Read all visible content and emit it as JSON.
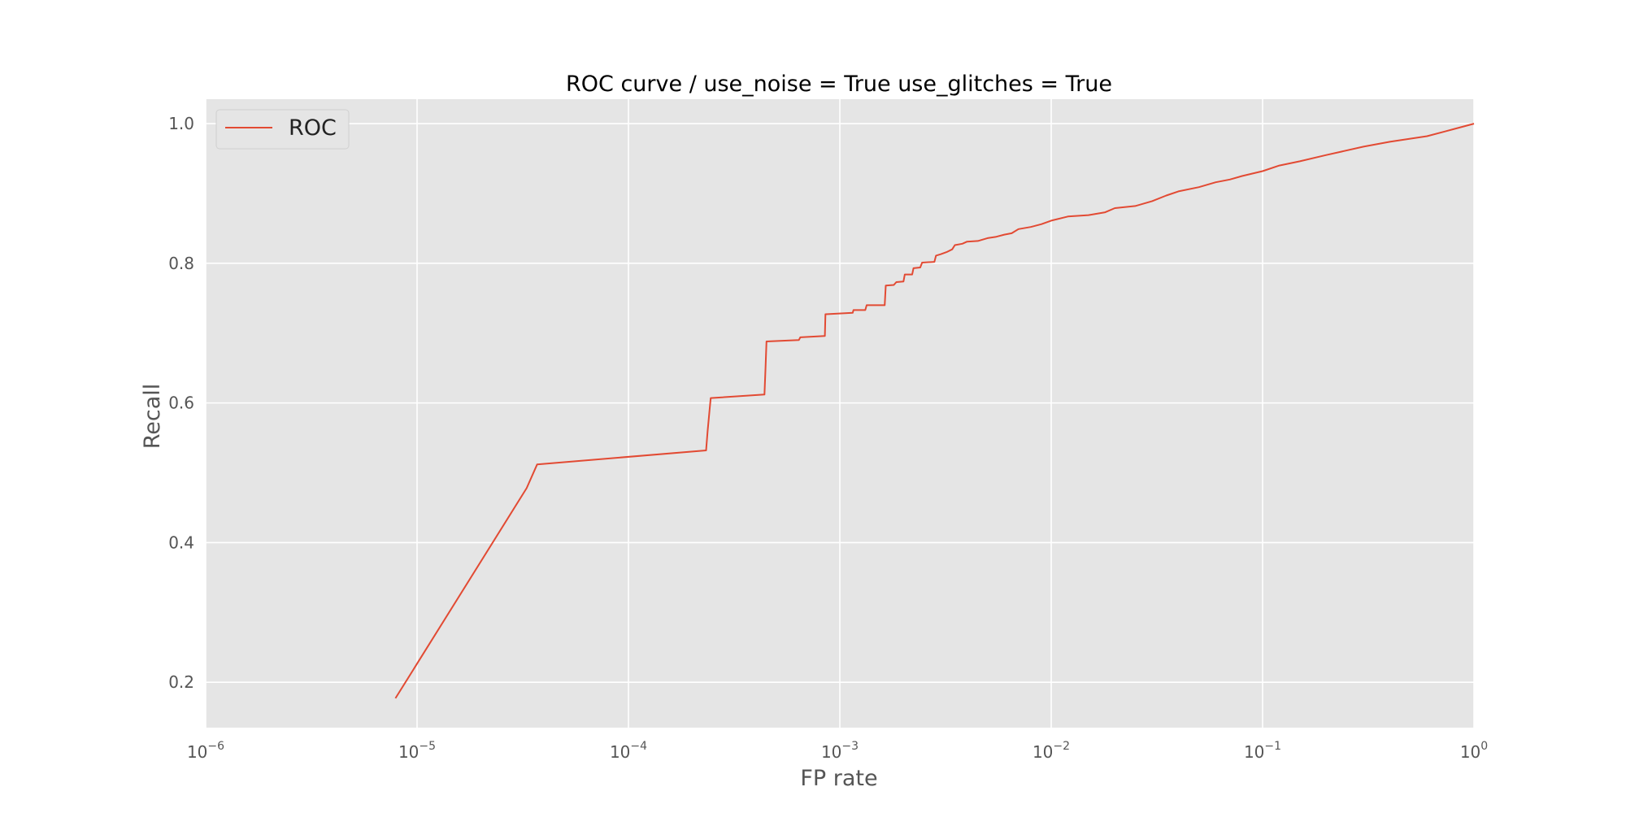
{
  "chart_data": {
    "type": "line",
    "title": "ROC curve / use_noise = True  use_glitches = True",
    "xlabel": "FP rate",
    "ylabel": "Recall",
    "xscale": "log",
    "xlim": [
      1e-06,
      1
    ],
    "ylim": [
      0.135,
      1.035
    ],
    "grid": true,
    "legend_placement": "upper-left",
    "x_ticks": [
      {
        "value": 1e-06,
        "base": "10",
        "exp": "−6"
      },
      {
        "value": 1e-05,
        "base": "10",
        "exp": "−5"
      },
      {
        "value": 0.0001,
        "base": "10",
        "exp": "−4"
      },
      {
        "value": 0.001,
        "base": "10",
        "exp": "−3"
      },
      {
        "value": 0.01,
        "base": "10",
        "exp": "−2"
      },
      {
        "value": 0.1,
        "base": "10",
        "exp": "−1"
      },
      {
        "value": 1,
        "base": "10",
        "exp": "0"
      }
    ],
    "y_ticks": [
      {
        "value": 0.2,
        "label": "0.2"
      },
      {
        "value": 0.4,
        "label": "0.4"
      },
      {
        "value": 0.6,
        "label": "0.6"
      },
      {
        "value": 0.8,
        "label": "0.8"
      },
      {
        "value": 1.0,
        "label": "1.0"
      }
    ],
    "series": [
      {
        "name": "ROC",
        "color": "#e24a33",
        "points": [
          [
            7.9e-06,
            0.177
          ],
          [
            3.3e-05,
            0.478
          ],
          [
            3.7e-05,
            0.512
          ],
          [
            0.000233,
            0.532
          ],
          [
            0.000237,
            0.56
          ],
          [
            0.000242,
            0.59
          ],
          [
            0.000245,
            0.607
          ],
          [
            0.00044,
            0.612
          ],
          [
            0.000445,
            0.65
          ],
          [
            0.00045,
            0.688
          ],
          [
            0.00064,
            0.69
          ],
          [
            0.00065,
            0.694
          ],
          [
            0.00085,
            0.696
          ],
          [
            0.000855,
            0.727
          ],
          [
            0.00115,
            0.729
          ],
          [
            0.00116,
            0.733
          ],
          [
            0.00132,
            0.733
          ],
          [
            0.00134,
            0.74
          ],
          [
            0.00163,
            0.74
          ],
          [
            0.00165,
            0.768
          ],
          [
            0.0018,
            0.769
          ],
          [
            0.00185,
            0.773
          ],
          [
            0.002,
            0.774
          ],
          [
            0.00203,
            0.784
          ],
          [
            0.0022,
            0.784
          ],
          [
            0.00223,
            0.793
          ],
          [
            0.0024,
            0.794
          ],
          [
            0.00245,
            0.801
          ],
          [
            0.0028,
            0.802
          ],
          [
            0.00285,
            0.811
          ],
          [
            0.003,
            0.813
          ],
          [
            0.0032,
            0.816
          ],
          [
            0.0034,
            0.82
          ],
          [
            0.0035,
            0.826
          ],
          [
            0.0038,
            0.828
          ],
          [
            0.004,
            0.831
          ],
          [
            0.0045,
            0.832
          ],
          [
            0.005,
            0.836
          ],
          [
            0.0055,
            0.838
          ],
          [
            0.006,
            0.841
          ],
          [
            0.0065,
            0.843
          ],
          [
            0.007,
            0.849
          ],
          [
            0.008,
            0.852
          ],
          [
            0.009,
            0.856
          ],
          [
            0.01,
            0.861
          ],
          [
            0.012,
            0.867
          ],
          [
            0.015,
            0.869
          ],
          [
            0.018,
            0.873
          ],
          [
            0.02,
            0.879
          ],
          [
            0.025,
            0.882
          ],
          [
            0.03,
            0.889
          ],
          [
            0.035,
            0.897
          ],
          [
            0.04,
            0.903
          ],
          [
            0.05,
            0.909
          ],
          [
            0.06,
            0.916
          ],
          [
            0.07,
            0.92
          ],
          [
            0.08,
            0.925
          ],
          [
            0.1,
            0.932
          ],
          [
            0.12,
            0.94
          ],
          [
            0.15,
            0.946
          ],
          [
            0.2,
            0.955
          ],
          [
            0.3,
            0.967
          ],
          [
            0.4,
            0.974
          ],
          [
            0.6,
            0.982
          ],
          [
            0.8,
            0.992
          ],
          [
            1.0,
            1.0
          ]
        ]
      }
    ]
  }
}
